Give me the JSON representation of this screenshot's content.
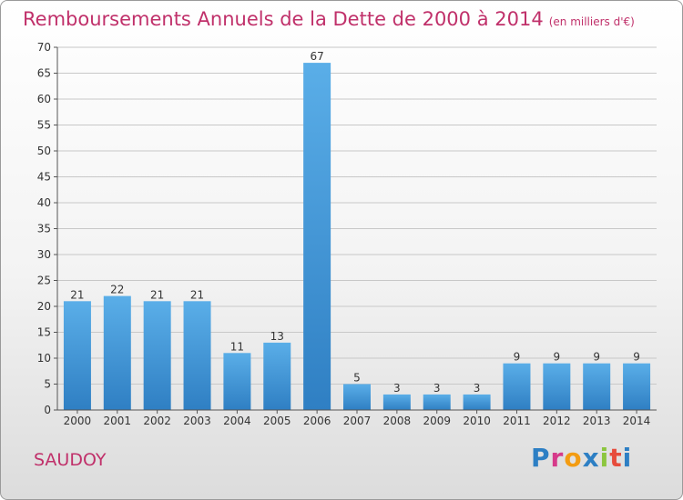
{
  "header": {
    "title": "Remboursements Annuels de la Dette de 2000 à 2014",
    "subtitle": "(en milliers d'€)"
  },
  "footer": {
    "commune": "SAUDOY",
    "logo": "Proxiti"
  },
  "colors": {
    "title": "#c0306a",
    "bar_top": "#5aaee8",
    "bar_bottom": "#2f7fc3"
  },
  "chart_data": {
    "type": "bar",
    "categories": [
      "2000",
      "2001",
      "2002",
      "2003",
      "2004",
      "2005",
      "2006",
      "2007",
      "2008",
      "2009",
      "2010",
      "2011",
      "2012",
      "2013",
      "2014"
    ],
    "values": [
      21,
      22,
      21,
      21,
      11,
      13,
      67,
      5,
      3,
      3,
      3,
      9,
      9,
      9,
      9
    ],
    "title": "Remboursements Annuels de la Dette de 2000 à 2014",
    "ylim": [
      0,
      70
    ],
    "yticks": [
      0,
      5,
      10,
      15,
      20,
      25,
      30,
      35,
      40,
      45,
      50,
      55,
      60,
      65,
      70
    ],
    "grid": true,
    "data_labels": true
  }
}
